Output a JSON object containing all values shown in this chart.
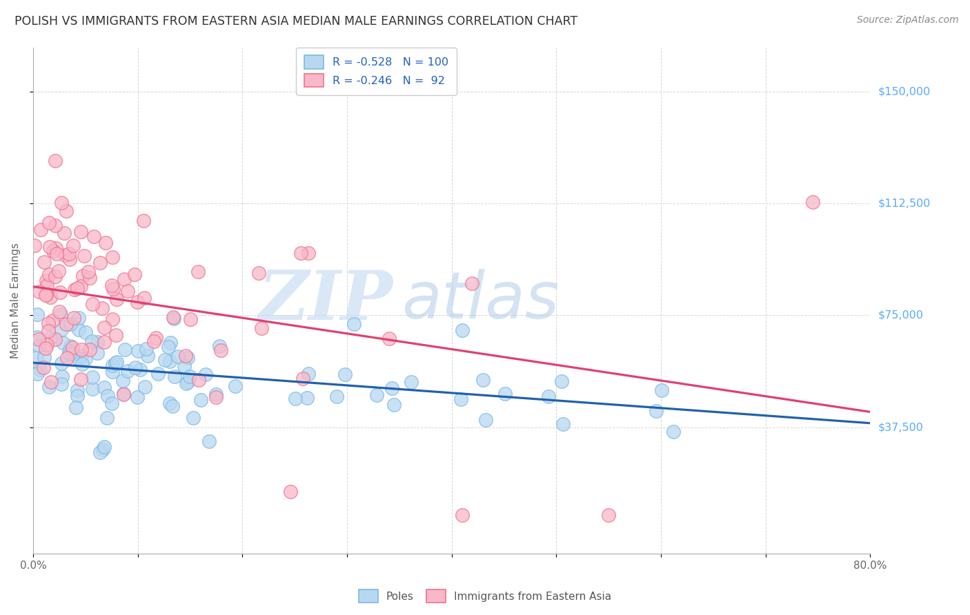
{
  "title": "POLISH VS IMMIGRANTS FROM EASTERN ASIA MEDIAN MALE EARNINGS CORRELATION CHART",
  "source": "Source: ZipAtlas.com",
  "ylabel": "Median Male Earnings",
  "xlim": [
    0.0,
    0.8
  ],
  "ylim": [
    -5000,
    165000
  ],
  "yticks": [
    37500,
    75000,
    112500,
    150000
  ],
  "ytick_labels": [
    "$37,500",
    "$75,000",
    "$112,500",
    "$150,000"
  ],
  "xticks": [
    0.0,
    0.1,
    0.2,
    0.3,
    0.4,
    0.5,
    0.6,
    0.7,
    0.8
  ],
  "watermark_zip": "ZIP",
  "watermark_atlas": "atlas",
  "legend_labels_bottom": [
    "Poles",
    "Immigrants from Eastern Asia"
  ],
  "poles_color_edge": "#7ab8e8",
  "poles_color_fill": "#b8d8f0",
  "east_asia_color_edge": "#f07090",
  "east_asia_color_fill": "#f8b8c8",
  "trend_poles_color": "#2060b0",
  "trend_east_asia_color": "#e04070",
  "background_color": "#ffffff",
  "grid_color": "#cccccc",
  "title_color": "#333333",
  "right_label_color": "#55aaff",
  "legend_box_color": "#cccccc",
  "legend_text_color": "#2060c0"
}
